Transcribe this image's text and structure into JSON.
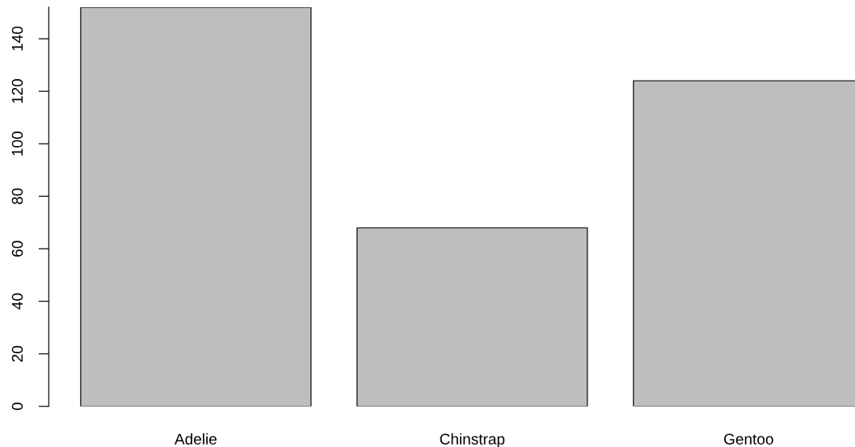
{
  "chart_data": {
    "type": "bar",
    "categories": [
      "Adelie",
      "Chinstrap",
      "Gentoo"
    ],
    "values": [
      152,
      68,
      124
    ],
    "color": "#bebebe",
    "ylim": [
      0,
      152
    ],
    "yticks": [
      0,
      20,
      40,
      60,
      80,
      100,
      120,
      140
    ]
  }
}
